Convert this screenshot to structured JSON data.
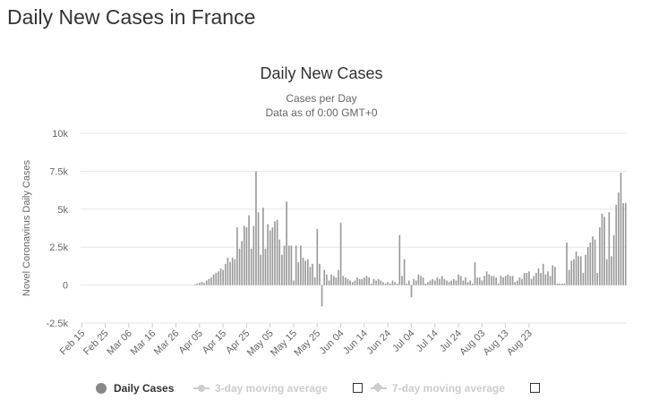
{
  "page": {
    "title": "Daily New Cases in France"
  },
  "chart_data": {
    "type": "bar",
    "title": "Daily New Cases",
    "subtitle_line1": "Cases per Day",
    "subtitle_line2": "Data as of 0:00 GMT+0",
    "ylabel": "Novel Coronavirus Daily Cases",
    "xlabel": "",
    "ylim": [
      -2500,
      10000
    ],
    "y_ticks": [
      -2500,
      0,
      2500,
      5000,
      7500,
      10000
    ],
    "y_tick_labels": [
      "-2.5k",
      "0",
      "2.5k",
      "5k",
      "7.5k",
      "10k"
    ],
    "x_start": "Feb 15",
    "x_tick_labels": [
      "Feb 15",
      "Feb 25",
      "Mar 06",
      "Mar 16",
      "Mar 26",
      "Apr 05",
      "Apr 15",
      "Apr 25",
      "May 05",
      "May 15",
      "May 25",
      "Jun 04",
      "Jun 14",
      "Jun 24",
      "Jul 04",
      "Jul 14",
      "Jul 24",
      "Aug 03",
      "Aug 13",
      "Aug 23"
    ],
    "grid": true,
    "bar_color": "#999999",
    "series": [
      {
        "name": "Daily Cases",
        "values": [
          0,
          0,
          0,
          0,
          0,
          0,
          0,
          0,
          0,
          0,
          0,
          0,
          0,
          0,
          0,
          0,
          0,
          0,
          0,
          0,
          0,
          0,
          0,
          0,
          0,
          0,
          0,
          0,
          0,
          0,
          0,
          0,
          0,
          0,
          0,
          0,
          0,
          0,
          0,
          0,
          0,
          0,
          0,
          0,
          0,
          0,
          0,
          0,
          50,
          100,
          150,
          200,
          150,
          300,
          400,
          500,
          700,
          800,
          900,
          1100,
          1000,
          1400,
          1800,
          1500,
          1800,
          1700,
          3800,
          2400,
          2900,
          3900,
          3800,
          4600,
          2400,
          3900,
          7500,
          4800,
          2000,
          5100,
          2400,
          4000,
          3600,
          3800,
          4200,
          4300,
          3000,
          2000,
          2600,
          5500,
          2600,
          2600,
          300,
          2600,
          1500,
          2600,
          1800,
          1600,
          1700,
          1200,
          1400,
          500,
          3700,
          1400,
          -1400,
          1000,
          700,
          300,
          700,
          600,
          500,
          1000,
          4100,
          600,
          500,
          400,
          300,
          200,
          300,
          500,
          400,
          400,
          500,
          600,
          500,
          100,
          400,
          300,
          400,
          300,
          200,
          100,
          200,
          100,
          300,
          200,
          100,
          3300,
          600,
          1700,
          100,
          300,
          -800,
          400,
          300,
          700,
          600,
          500,
          100,
          200,
          300,
          400,
          300,
          500,
          400,
          600,
          400,
          300,
          200,
          300,
          400,
          300,
          700,
          600,
          300,
          500,
          200,
          300,
          100,
          1500,
          500,
          500,
          300,
          600,
          900,
          700,
          600,
          600,
          500,
          100,
          600,
          500,
          600,
          700,
          600,
          600,
          200,
          300,
          500,
          400,
          800,
          800,
          900,
          400,
          600,
          800,
          1100,
          800,
          1400,
          700,
          900,
          600,
          1300,
          1200,
          100,
          100,
          100,
          100,
          2800,
          1000,
          1600,
          1700,
          2200,
          1900,
          1900,
          800,
          2000,
          2500,
          2800,
          3200,
          3000,
          800,
          3800,
          4700,
          4500,
          1700,
          4800,
          1900,
          3300,
          5300,
          6100,
          7400,
          5400,
          5400
        ]
      }
    ],
    "legend": [
      {
        "label": "Daily Cases",
        "enabled": true
      },
      {
        "label": "3-day moving average",
        "enabled": false
      },
      {
        "label": "7-day moving average",
        "enabled": false
      }
    ]
  }
}
